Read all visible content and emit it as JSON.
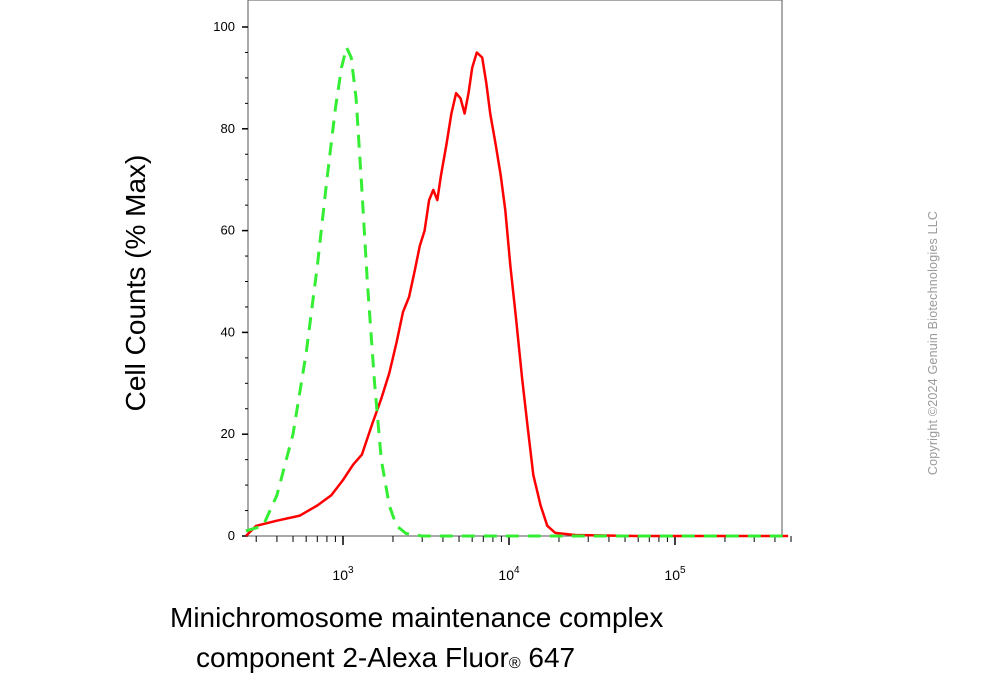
{
  "chart_data": {
    "type": "line",
    "xscale": "log",
    "xlabel_line1": "Minichromosome maintenance complex",
    "xlabel_line2_pre": "component 2-Alexa Fluor",
    "xlabel_line2_sup": "®",
    "xlabel_line2_post": " 647",
    "ylabel": "Cell Counts (% Max)",
    "ylim": [
      0,
      105
    ],
    "xlim": [
      250,
      500000
    ],
    "yticks": [
      {
        "v": 0,
        "label": "0"
      },
      {
        "v": 20,
        "label": "20"
      },
      {
        "v": 40,
        "label": "40"
      },
      {
        "v": 60,
        "label": "60"
      },
      {
        "v": 80,
        "label": "80"
      },
      {
        "v": 100,
        "label": "100"
      }
    ],
    "xticks": [
      {
        "v": 1000,
        "base": "10",
        "exp": "3"
      },
      {
        "v": 10000,
        "base": "10",
        "exp": "4"
      },
      {
        "v": 100000,
        "base": "10",
        "exp": "5"
      }
    ],
    "series": [
      {
        "style": "solid",
        "color": "#ff0000",
        "points": [
          [
            260,
            0
          ],
          [
            300,
            2
          ],
          [
            400,
            3
          ],
          [
            550,
            4
          ],
          [
            700,
            6
          ],
          [
            850,
            8
          ],
          [
            1000,
            11
          ],
          [
            1150,
            14
          ],
          [
            1300,
            16
          ],
          [
            1500,
            22
          ],
          [
            1700,
            27
          ],
          [
            1900,
            32
          ],
          [
            2100,
            38
          ],
          [
            2300,
            44
          ],
          [
            2500,
            47
          ],
          [
            2700,
            52
          ],
          [
            2900,
            57
          ],
          [
            3100,
            60
          ],
          [
            3300,
            66
          ],
          [
            3500,
            68
          ],
          [
            3700,
            66
          ],
          [
            3900,
            71
          ],
          [
            4200,
            77
          ],
          [
            4500,
            83
          ],
          [
            4800,
            87
          ],
          [
            5100,
            86
          ],
          [
            5400,
            83
          ],
          [
            5700,
            87
          ],
          [
            6000,
            92
          ],
          [
            6400,
            95
          ],
          [
            6900,
            94
          ],
          [
            7300,
            89
          ],
          [
            7700,
            83
          ],
          [
            8300,
            77
          ],
          [
            8900,
            71
          ],
          [
            9500,
            64
          ],
          [
            10200,
            53
          ],
          [
            11000,
            43
          ],
          [
            12000,
            31
          ],
          [
            13000,
            21
          ],
          [
            14000,
            12
          ],
          [
            15500,
            6
          ],
          [
            17000,
            2
          ],
          [
            19000,
            0.6
          ],
          [
            25000,
            0.2
          ],
          [
            60000,
            0
          ],
          [
            480000,
            0
          ]
        ]
      },
      {
        "style": "dashed",
        "color": "#33ee33",
        "points": [
          [
            260,
            1
          ],
          [
            330,
            2
          ],
          [
            400,
            8
          ],
          [
            500,
            20
          ],
          [
            600,
            36
          ],
          [
            700,
            53
          ],
          [
            800,
            70
          ],
          [
            900,
            84
          ],
          [
            980,
            92
          ],
          [
            1050,
            96
          ],
          [
            1120,
            94
          ],
          [
            1200,
            86
          ],
          [
            1300,
            68
          ],
          [
            1400,
            50
          ],
          [
            1550,
            30
          ],
          [
            1700,
            15
          ],
          [
            1900,
            6
          ],
          [
            2100,
            2
          ],
          [
            2400,
            0.5
          ],
          [
            3000,
            0
          ],
          [
            480000,
            0
          ]
        ]
      }
    ]
  },
  "copyright": "Copyright ©2024 Genuin Biotechnologies LLC"
}
